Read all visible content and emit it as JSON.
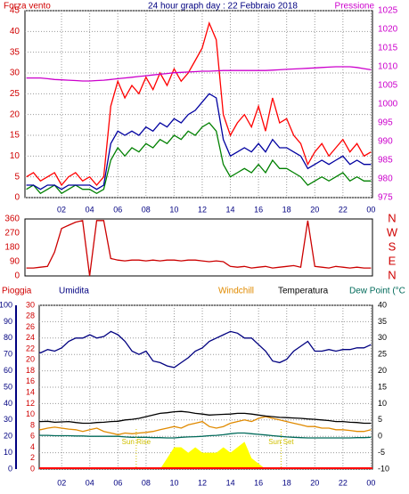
{
  "chart_data": [
    {
      "type": "line",
      "title": "24 hour graph day : 22 Febbraio 2018",
      "y_label": "Forza vento",
      "x": [
        -0.5,
        0,
        0.5,
        1,
        1.5,
        2,
        2.5,
        3,
        3.5,
        4,
        4.5,
        5,
        5.5,
        6,
        6.5,
        7,
        7.5,
        8,
        8.5,
        9,
        9.5,
        10,
        10.5,
        11,
        11.5,
        12,
        12.5,
        13,
        13.5,
        14,
        14.5,
        15,
        15.5,
        16,
        16.5,
        17,
        17.5,
        18,
        18.5,
        19,
        19.5,
        20,
        20.5,
        21,
        21.5,
        22,
        22.5,
        23,
        23.5,
        24
      ],
      "xlim": [
        -0.6,
        24.1
      ],
      "xticks": [
        {
          "value": 2,
          "label": "02"
        },
        {
          "value": 4,
          "label": "04"
        },
        {
          "value": 6,
          "label": "06"
        },
        {
          "value": 8,
          "label": "08"
        },
        10,
        12,
        14,
        16,
        18,
        20,
        22,
        {
          "value": 24,
          "label": "00"
        }
      ],
      "ylim": [
        0,
        45
      ],
      "yticks": [
        0,
        5,
        10,
        15,
        20,
        25,
        30,
        35,
        40,
        45
      ],
      "y2lim": [
        975,
        1025
      ],
      "y2ticks": [
        975,
        980,
        985,
        990,
        995,
        1000,
        1005,
        1010,
        1015,
        1020,
        1025
      ],
      "grid": "y",
      "series": [
        {
          "color": "#ff0000",
          "values": [
            5,
            6,
            4,
            5,
            6,
            3,
            5,
            6,
            4,
            5,
            3,
            5,
            22,
            28,
            24,
            27,
            25,
            29,
            26,
            30,
            27,
            31,
            28,
            30,
            33,
            36,
            42,
            38,
            20,
            15,
            18,
            20,
            17,
            22,
            16,
            24,
            18,
            19,
            15,
            13,
            8,
            11,
            13,
            10,
            12,
            14,
            11,
            13,
            10,
            11
          ]
        },
        {
          "color": "#008000",
          "values": [
            2,
            3,
            1,
            2,
            3,
            1,
            2,
            3,
            2,
            2,
            1,
            2,
            9,
            12,
            10,
            12,
            11,
            13,
            12,
            14,
            13,
            15,
            14,
            16,
            15,
            17,
            18,
            16,
            8,
            5,
            6,
            7,
            6,
            8,
            6,
            9,
            7,
            7,
            6,
            5,
            3,
            4,
            5,
            4,
            5,
            6,
            4,
            5,
            4,
            4
          ]
        },
        {
          "color": "#0000a0",
          "values": [
            3,
            3,
            2,
            3,
            3,
            2,
            3,
            3,
            3,
            3,
            2,
            3,
            13,
            16,
            15,
            16,
            15,
            17,
            16,
            18,
            17,
            19,
            18,
            20,
            21,
            23,
            25,
            24,
            14,
            10,
            11,
            12,
            11,
            13,
            11,
            14,
            12,
            12,
            11,
            10,
            7,
            8,
            9,
            8,
            9,
            10,
            8,
            9,
            8,
            8
          ]
        },
        {
          "name": "Pressione",
          "color": "#cc00cc",
          "axis": "y2",
          "values": [
            1007,
            1007,
            1007,
            1006.8,
            1006.6,
            1006.5,
            1006.4,
            1006.3,
            1006.2,
            1006.2,
            1006.3,
            1006.4,
            1006.6,
            1006.8,
            1007,
            1007.2,
            1007.4,
            1007.6,
            1007.8,
            1008,
            1008.2,
            1008.4,
            1008.5,
            1008.6,
            1008.7,
            1008.8,
            1008.8,
            1008.9,
            1009,
            1009,
            1009,
            1009,
            1009,
            1009,
            1009,
            1009.1,
            1009.2,
            1009.3,
            1009.4,
            1009.5,
            1009.6,
            1009.7,
            1009.8,
            1009.9,
            1010,
            1010,
            1010,
            1009.8,
            1009.5,
            1009.2
          ]
        }
      ]
    },
    {
      "type": "line",
      "x": [
        -0.5,
        0,
        0.5,
        1,
        1.5,
        2,
        2.5,
        3,
        3.5,
        4,
        4.5,
        5,
        5.5,
        6,
        6.5,
        7,
        7.5,
        8,
        8.5,
        9,
        9.5,
        10,
        10.5,
        11,
        11.5,
        12,
        12.5,
        13,
        13.5,
        14,
        14.5,
        15,
        15.5,
        16,
        16.5,
        17,
        17.5,
        18,
        18.5,
        19,
        19.5,
        20,
        20.5,
        21,
        21.5,
        22,
        22.5,
        23,
        23.5,
        24
      ],
      "xlim": [
        -0.6,
        24.1
      ],
      "ylim": [
        0,
        360
      ],
      "yticks": [
        0,
        90,
        180,
        270,
        360
      ],
      "y2lim": [
        0,
        360
      ],
      "y2ticks": [
        {
          "value": 0,
          "label": "N"
        },
        {
          "value": 90,
          "label": "E"
        },
        {
          "value": 180,
          "label": "S"
        },
        {
          "value": 270,
          "label": "W"
        },
        {
          "value": 360,
          "label": "N"
        }
      ],
      "series": [
        {
          "color": "#cc0000",
          "values": [
            50,
            50,
            55,
            60,
            150,
            300,
            320,
            340,
            350,
            0,
            350,
            350,
            110,
            100,
            95,
            100,
            100,
            95,
            100,
            95,
            100,
            100,
            95,
            100,
            100,
            95,
            90,
            95,
            90,
            60,
            55,
            60,
            50,
            55,
            60,
            50,
            55,
            60,
            65,
            55,
            350,
            60,
            55,
            50,
            60,
            55,
            50,
            55,
            50,
            50
          ]
        }
      ]
    },
    {
      "type": "line",
      "x": [
        -0.5,
        0,
        0.5,
        1,
        1.5,
        2,
        2.5,
        3,
        3.5,
        4,
        4.5,
        5,
        5.5,
        6,
        6.5,
        7,
        7.5,
        8,
        8.5,
        9,
        9.5,
        10,
        10.5,
        11,
        11.5,
        12,
        12.5,
        13,
        13.5,
        14,
        14.5,
        15,
        15.5,
        16,
        16.5,
        17,
        17.5,
        18,
        18.5,
        19,
        19.5,
        20,
        20.5,
        21,
        21.5,
        22,
        22.5,
        23,
        23.5,
        24
      ],
      "xlim": [
        0.4,
        24.1
      ],
      "xticks": [
        {
          "value": 2,
          "label": "02"
        },
        {
          "value": 4,
          "label": "04"
        },
        {
          "value": 6,
          "label": "06"
        },
        {
          "value": 8,
          "label": "08"
        },
        10,
        12,
        14,
        16,
        18,
        20,
        22,
        {
          "value": 24,
          "label": "00"
        }
      ],
      "ylim": [
        0,
        30
      ],
      "yticks": [
        0,
        2,
        4,
        6,
        8,
        10,
        12,
        14,
        16,
        18,
        20,
        22,
        24,
        26,
        28,
        30
      ],
      "y3lim": [
        0,
        100
      ],
      "y3ticks": [
        0,
        10,
        20,
        30,
        40,
        50,
        60,
        70,
        80,
        90,
        100
      ],
      "y2lim": [
        -10,
        40
      ],
      "y2ticks": [
        -10,
        -5,
        0,
        5,
        10,
        15,
        20,
        25,
        30,
        35,
        40
      ],
      "grid": "y3",
      "series": [
        {
          "name": "Pioggia",
          "color": "#ffff00",
          "style": "area",
          "values": [
            0,
            0,
            0,
            0,
            0,
            0,
            0,
            0,
            0,
            0,
            0,
            0,
            0,
            0,
            0,
            0,
            0,
            0,
            0,
            0,
            2,
            4,
            4,
            3,
            4,
            3,
            3,
            3,
            4,
            3,
            4,
            5,
            2,
            1,
            0,
            0,
            0,
            0,
            0,
            0,
            0,
            0,
            0,
            0,
            0,
            0,
            0,
            0,
            0,
            0
          ]
        },
        {
          "name": "Umidita",
          "color": "#000080",
          "axis": "y3",
          "values": [
            72,
            72,
            71,
            73,
            72,
            74,
            78,
            80,
            80,
            82,
            80,
            81,
            84,
            82,
            78,
            72,
            70,
            72,
            66,
            65,
            63,
            62,
            65,
            68,
            72,
            74,
            78,
            80,
            82,
            84,
            83,
            80,
            80,
            76,
            72,
            66,
            65,
            67,
            72,
            75,
            78,
            72,
            72,
            73,
            72,
            73,
            73,
            74,
            74,
            76
          ]
        },
        {
          "name": "Windchill",
          "color": "#e08a00",
          "axis": "y2",
          "values": [
            2.5,
            3,
            2,
            2.5,
            2.8,
            2.5,
            2.2,
            2,
            1.5,
            2,
            2.5,
            1.5,
            1,
            0.5,
            1,
            0.8,
            1,
            1.2,
            1.5,
            2,
            2.5,
            3,
            2.5,
            3.5,
            4,
            4.5,
            3,
            2.5,
            3,
            4,
            4.5,
            5,
            4.5,
            5.5,
            6,
            5.5,
            5,
            4.5,
            4,
            3.5,
            3,
            3,
            2.5,
            2.5,
            2,
            2,
            1.8,
            1.5,
            1.5,
            2
          ]
        },
        {
          "name": "Temperatura",
          "color": "#000000",
          "axis": "y2",
          "values": [
            4.5,
            4.8,
            4.5,
            4.6,
            4.3,
            4.4,
            4.5,
            4.2,
            4,
            4,
            4.2,
            4.3,
            4.5,
            4.6,
            5,
            5.2,
            5.5,
            6,
            6.5,
            7,
            7.2,
            7.5,
            7.6,
            7.4,
            7,
            6.8,
            6.5,
            6.6,
            6.7,
            6.8,
            7,
            7,
            6.8,
            6.5,
            6.2,
            6,
            5.8,
            5.7,
            5.6,
            5.5,
            5.3,
            5.2,
            5,
            4.8,
            4.5,
            4.5,
            4.3,
            4.2,
            4,
            4
          ]
        },
        {
          "name": "Dew Point (°C",
          "color": "#006a5a",
          "axis": "y2",
          "values": [
            0.5,
            0.5,
            0.3,
            0.3,
            0.2,
            0.2,
            0.2,
            0.1,
            0.1,
            0,
            0,
            0,
            0,
            0,
            -0.2,
            -0.3,
            -0.3,
            -0.3,
            -0.4,
            -0.4,
            -0.5,
            -0.5,
            -0.3,
            -0.2,
            -0.1,
            0,
            0.2,
            0.3,
            0.5,
            0.8,
            1,
            1,
            0.8,
            0.6,
            0.4,
            0.2,
            0,
            -0.2,
            -0.3,
            -0.4,
            -0.5,
            -0.5,
            -0.5,
            -0.5,
            -0.5,
            -0.5,
            -0.5,
            -0.4,
            -0.4,
            -0.3
          ]
        }
      ],
      "annotations": [
        {
          "text": "Sun Rise",
          "x": 7.3
        },
        {
          "text": "Sun Set",
          "x": 17.6
        }
      ]
    }
  ]
}
